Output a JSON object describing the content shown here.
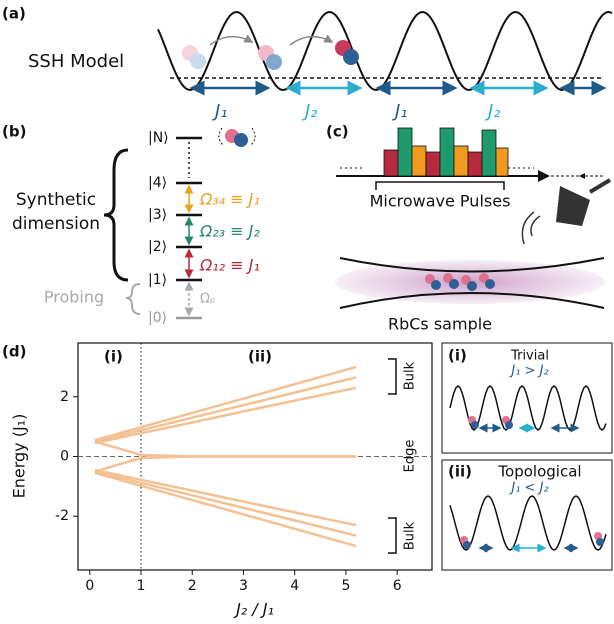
{
  "panel_a": {
    "label": "(a)",
    "title": "SSH Model",
    "couplings": [
      "J₁",
      "J₂",
      "J₁",
      "J₂"
    ]
  },
  "panel_b": {
    "label": "(b)",
    "levels": [
      "|N⟩",
      "|4⟩",
      "|3⟩",
      "|2⟩",
      "|1⟩",
      "|0⟩"
    ],
    "brace_label": [
      "Synthetic",
      "dimension"
    ],
    "probing": "Probing",
    "couplings": [
      "Ω₃₄ ≡ J₁",
      "Ω₂₃ ≡ J₂",
      "Ω₁₂ ≡ J₁",
      "Ωₚ"
    ]
  },
  "panel_c": {
    "label": "(c)",
    "pulses": "Microwave Pulses",
    "sample": "RbCs sample"
  },
  "panel_d": {
    "label": "(d)"
  },
  "insets": [
    {
      "label": "(i)",
      "title": "Trivial",
      "condition": "J₁ > J₂"
    },
    {
      "label": "(ii)",
      "title": "Topological",
      "condition": "J₁ < J₂"
    }
  ],
  "chart_data": {
    "type": "line",
    "xlabel": "J₂ / J₁",
    "ylabel": "Energy (J₁)",
    "x": [
      0.1,
      0.5,
      1,
      2,
      3,
      4,
      5.2
    ],
    "series": [
      {
        "color": "#f4c193",
        "values": [
          0.55,
          0.74,
          0.98,
          1.46,
          1.94,
          2.42,
          3.0
        ]
      },
      {
        "color": "#f4c193",
        "values": [
          0.5,
          0.67,
          0.88,
          1.3,
          1.72,
          2.14,
          2.65
        ]
      },
      {
        "color": "#f4c193",
        "values": [
          0.45,
          0.6,
          0.78,
          1.14,
          1.51,
          1.87,
          2.3
        ]
      },
      {
        "color": "#f4c193",
        "values": [
          0.5,
          0.3,
          0.05,
          0,
          0,
          0,
          0
        ]
      },
      {
        "color": "#f4c193",
        "values": [
          -0.5,
          -0.3,
          -0.05,
          0,
          0,
          0,
          0
        ]
      },
      {
        "color": "#f4c193",
        "values": [
          -0.45,
          -0.6,
          -0.78,
          -1.14,
          -1.51,
          -1.87,
          -2.3
        ]
      },
      {
        "color": "#f4c193",
        "values": [
          -0.5,
          -0.67,
          -0.88,
          -1.3,
          -1.72,
          -2.14,
          -2.65
        ]
      },
      {
        "color": "#f4c193",
        "values": [
          -0.55,
          -0.74,
          -0.98,
          -1.46,
          -1.94,
          -2.42,
          -3.0
        ]
      }
    ],
    "xlim": [
      -0.23,
      6.68
    ],
    "ylim": [
      -3.8,
      3.8
    ],
    "xticks": [
      0,
      1,
      2,
      3,
      4,
      5,
      6
    ],
    "yticks": [
      -2,
      0,
      2
    ],
    "vline": 1,
    "hline": 0,
    "annotations": [
      "(i)",
      "(ii)",
      "Bulk",
      "Edge",
      "Bulk"
    ]
  }
}
